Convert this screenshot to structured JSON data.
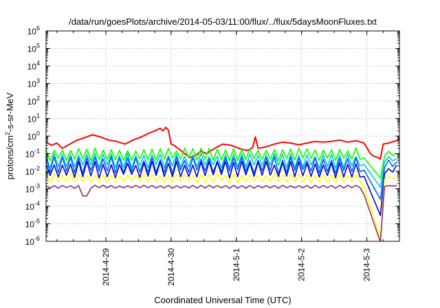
{
  "chart_data": {
    "type": "line",
    "title": "/data/run/goesPlots/archive/2014-05-03/11:00/flux/../flux/5daysMoonFluxes.txt",
    "xlabel": "Coordinated Universal Time (UTC)",
    "ylabel_parts": [
      "protons/cm",
      "2",
      "-s-sr-MeV"
    ],
    "yscale": "log",
    "ylim": [
      1e-06,
      1000000.0
    ],
    "y_ticks": [
      {
        "base": "10",
        "exp": "-6",
        "value": 1e-06
      },
      {
        "base": "10",
        "exp": "-5",
        "value": 1e-05
      },
      {
        "base": "10",
        "exp": "-4",
        "value": 0.0001
      },
      {
        "base": "10",
        "exp": "-3",
        "value": 0.001
      },
      {
        "base": "10",
        "exp": "-2",
        "value": 0.01
      },
      {
        "base": "10",
        "exp": "-1",
        "value": 0.1
      },
      {
        "base": "10",
        "exp": "0",
        "value": 1.0
      },
      {
        "base": "10",
        "exp": "1",
        "value": 10.0
      },
      {
        "base": "10",
        "exp": "2",
        "value": 100.0
      },
      {
        "base": "10",
        "exp": "3",
        "value": 1000.0
      },
      {
        "base": "10",
        "exp": "4",
        "value": 10000.0
      },
      {
        "base": "10",
        "exp": "5",
        "value": 100000.0
      },
      {
        "base": "10",
        "exp": "6",
        "value": 1000000.0
      }
    ],
    "xlim": [
      "2014-04-28T02:00",
      "2014-05-03T12:00"
    ],
    "x_ticks": [
      {
        "label": "2014-4-29",
        "value": "2014-04-29T00:00"
      },
      {
        "label": "2014-4-30",
        "value": "2014-04-30T00:00"
      },
      {
        "label": "2014-5-1",
        "value": "2014-05-01T00:00"
      },
      {
        "label": "2014-5-2",
        "value": "2014-05-02T00:00"
      },
      {
        "label": "2014-5-3",
        "value": "2014-05-03T00:00"
      }
    ],
    "grid": true,
    "series": [
      {
        "color": "#ff0000",
        "points": [
          [
            "2014-04-28T02:00",
            0.45
          ],
          [
            "2014-04-28T04:00",
            0.3
          ],
          [
            "2014-04-28T06:00",
            0.4
          ],
          [
            "2014-04-28T08:00",
            0.2
          ],
          [
            "2014-04-28T10:00",
            0.3
          ],
          [
            "2014-04-28T13:00",
            0.55
          ],
          [
            "2014-04-28T16:00",
            0.8
          ],
          [
            "2014-04-28T19:00",
            1.2
          ],
          [
            "2014-04-28T22:00",
            0.9
          ],
          [
            "2014-04-29T01:00",
            0.6
          ],
          [
            "2014-04-29T04:00",
            0.5
          ],
          [
            "2014-04-29T07:00",
            0.35
          ],
          [
            "2014-04-29T10:00",
            0.6
          ],
          [
            "2014-04-29T13:00",
            0.9
          ],
          [
            "2014-04-29T16:00",
            1.5
          ],
          [
            "2014-04-29T18:00",
            2.0
          ],
          [
            "2014-04-29T20:00",
            2.8
          ],
          [
            "2014-04-29T21:00",
            2.0
          ],
          [
            "2014-04-29T22:00",
            3.2
          ],
          [
            "2014-04-29T23:00",
            2.2
          ],
          [
            "2014-04-30T00:00",
            0.35
          ],
          [
            "2014-04-30T01:00",
            0.3
          ],
          [
            "2014-04-30T03:00",
            0.18
          ],
          [
            "2014-04-30T05:00",
            0.1
          ],
          [
            "2014-04-30T07:00",
            0.06
          ],
          [
            "2014-04-30T09:00",
            0.08
          ],
          [
            "2014-04-30T11:00",
            0.14
          ],
          [
            "2014-04-30T13:00",
            0.1
          ],
          [
            "2014-04-30T16:00",
            0.2
          ],
          [
            "2014-04-30T19:00",
            0.35
          ],
          [
            "2014-04-30T22:00",
            0.3
          ],
          [
            "2014-05-01T01:00",
            0.2
          ],
          [
            "2014-05-01T04:00",
            0.15
          ],
          [
            "2014-05-01T06:00",
            0.22
          ],
          [
            "2014-05-01T07:00",
            0.9
          ],
          [
            "2014-05-01T08:00",
            0.2
          ],
          [
            "2014-05-01T11:00",
            0.25
          ],
          [
            "2014-05-01T14:00",
            0.35
          ],
          [
            "2014-05-01T17:00",
            0.45
          ],
          [
            "2014-05-01T20:00",
            0.4
          ],
          [
            "2014-05-01T23:00",
            0.32
          ],
          [
            "2014-05-02T02:00",
            0.4
          ],
          [
            "2014-05-02T05:00",
            0.5
          ],
          [
            "2014-05-02T08:00",
            0.45
          ],
          [
            "2014-05-02T11:00",
            0.5
          ],
          [
            "2014-05-02T14:00",
            0.6
          ],
          [
            "2014-05-02T17:00",
            0.45
          ],
          [
            "2014-05-02T20:00",
            0.55
          ],
          [
            "2014-05-02T23:00",
            0.4
          ],
          [
            "2014-05-03T00:00",
            0.22
          ],
          [
            "2014-05-03T01:00",
            0.12
          ],
          [
            "2014-05-03T02:00",
            0.08
          ],
          [
            "2014-05-03T04:00",
            0.06
          ],
          [
            "2014-05-03T05:00",
            0.05
          ],
          [
            "2014-05-03T06:00",
            0.35
          ],
          [
            "2014-05-03T08:00",
            0.4
          ],
          [
            "2014-05-03T10:00",
            0.5
          ],
          [
            "2014-05-03T12:00",
            0.65
          ]
        ]
      },
      {
        "color": "#00ff00",
        "base": 0.09,
        "amp": 0.35,
        "drop_to": 0.004,
        "seed": 11
      },
      {
        "color": "#00c8c8",
        "base": 0.04,
        "amp": 0.4,
        "drop_to": 0.0012,
        "seed": 23
      },
      {
        "color": "#0060ff",
        "base": 0.022,
        "amp": 0.45,
        "drop_to": 0.00025,
        "seed": 37
      },
      {
        "color": "#0000d0",
        "base": 0.012,
        "amp": 0.45,
        "drop_to": 3e-05,
        "seed": 51
      },
      {
        "color": "#ffff00",
        "base": 0.004,
        "amp": 0.25,
        "drop_to": 1.5e-06,
        "seed": 67
      },
      {
        "color": "#8b2a6a",
        "base": 0.0013,
        "amp": 0.08,
        "drop_to": 9e-07,
        "seed": 79
      }
    ]
  }
}
